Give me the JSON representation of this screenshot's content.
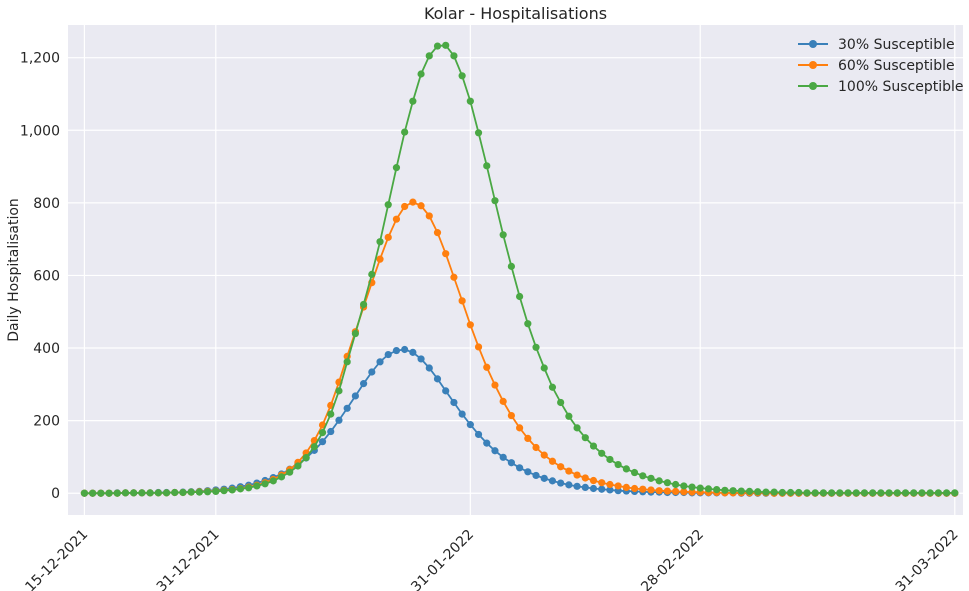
{
  "chart_data": {
    "type": "line",
    "title": "Kolar - Hospitalisations",
    "xlabel": "",
    "ylabel": "Daily Hospitalisation",
    "x_start": "15-12-2021",
    "x_end": "31-03-2022",
    "xlim": [
      "13-12-2021",
      "01-04-2022"
    ],
    "ylim": [
      -60,
      1290
    ],
    "x_ticks": [
      {
        "date": "15-12-2021",
        "label": "15-12-2021"
      },
      {
        "date": "31-12-2021",
        "label": "31-12-2021"
      },
      {
        "date": "31-01-2022",
        "label": "31-01-2022"
      },
      {
        "date": "28-02-2022",
        "label": "28-02-2022"
      },
      {
        "date": "31-03-2022",
        "label": "31-03-2022"
      }
    ],
    "y_ticks": [
      0,
      200,
      400,
      600,
      800,
      1000,
      1200
    ],
    "y_tick_labels": [
      "0",
      "200",
      "400",
      "600",
      "800",
      "1,000",
      "1,200"
    ],
    "grid": true,
    "legend_position": "top-right",
    "background": "#eaeaf2",
    "series": [
      {
        "name": "30% Susceptible",
        "color": "#3a80b9",
        "values": [
          0,
          0,
          0,
          0,
          1,
          1,
          1,
          1,
          1,
          2,
          2,
          2,
          3,
          4,
          5,
          7,
          9,
          11,
          14,
          18,
          22,
          28,
          35,
          43,
          53,
          66,
          80,
          97,
          118,
          142,
          170,
          201,
          234,
          268,
          302,
          334,
          362,
          382,
          393,
          396,
          388,
          370,
          345,
          315,
          282,
          250,
          218,
          189,
          162,
          138,
          117,
          99,
          84,
          70,
          59,
          49,
          41,
          34,
          28,
          23,
          19,
          16,
          13,
          11,
          9,
          7,
          6,
          5,
          4,
          3,
          3,
          2,
          2,
          2,
          1,
          1,
          1,
          1,
          1,
          1,
          0,
          0,
          0,
          0,
          0,
          0,
          0,
          0,
          0,
          0,
          0,
          0,
          0,
          0,
          0,
          0,
          0,
          0,
          0,
          0,
          0,
          0,
          0,
          0,
          0,
          0,
          0
        ]
      },
      {
        "name": "60% Susceptible",
        "color": "#ff7f0e",
        "values": [
          0,
          0,
          0,
          0,
          0,
          1,
          1,
          1,
          1,
          1,
          1,
          2,
          2,
          3,
          4,
          5,
          6,
          8,
          10,
          13,
          17,
          22,
          29,
          38,
          50,
          65,
          85,
          111,
          145,
          188,
          242,
          306,
          377,
          445,
          513,
          580,
          645,
          705,
          755,
          790,
          802,
          792,
          764,
          718,
          660,
          595,
          530,
          464,
          403,
          347,
          298,
          253,
          214,
          180,
          151,
          126,
          105,
          88,
          73,
          61,
          50,
          42,
          35,
          29,
          24,
          20,
          16,
          13,
          11,
          9,
          7,
          6,
          5,
          4,
          3,
          3,
          2,
          2,
          1,
          1,
          1,
          1,
          1,
          1,
          0,
          0,
          0,
          0,
          0,
          0,
          0,
          0,
          0,
          0,
          0,
          0,
          0,
          0,
          0,
          0,
          0,
          0,
          0,
          0,
          0,
          0,
          0
        ]
      },
      {
        "name": "100% Susceptible",
        "color": "#4aa844",
        "values": [
          0,
          0,
          0,
          0,
          0,
          1,
          1,
          1,
          1,
          1,
          1,
          2,
          2,
          3,
          3,
          4,
          5,
          7,
          9,
          12,
          15,
          20,
          26,
          34,
          45,
          58,
          75,
          98,
          128,
          167,
          218,
          282,
          362,
          440,
          520,
          603,
          693,
          795,
          897,
          995,
          1080,
          1155,
          1205,
          1232,
          1234,
          1205,
          1150,
          1080,
          993,
          902,
          806,
          712,
          625,
          542,
          467,
          402,
          345,
          292,
          250,
          212,
          180,
          153,
          130,
          110,
          93,
          79,
          67,
          57,
          48,
          41,
          34,
          29,
          24,
          20,
          17,
          14,
          12,
          10,
          8,
          7,
          6,
          5,
          4,
          3,
          3,
          2,
          2,
          2,
          1,
          1,
          1,
          1,
          1,
          1,
          1,
          1,
          1,
          1,
          1,
          1,
          1,
          1,
          1,
          1,
          1,
          1,
          1
        ]
      }
    ]
  }
}
